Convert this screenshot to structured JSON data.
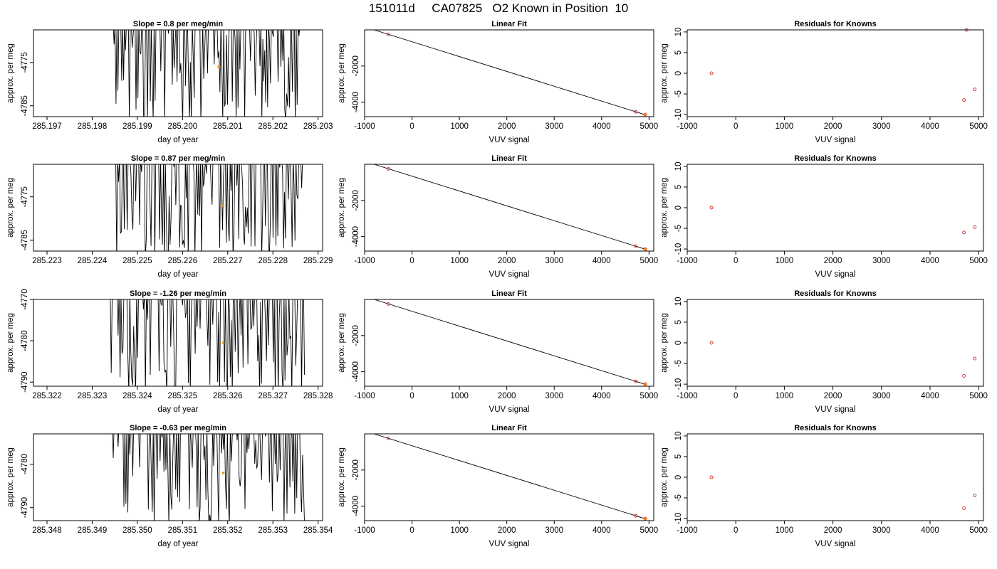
{
  "figure": {
    "title": "151011d     CA07825   O2 Known in Position  10"
  },
  "style": {
    "trace_color": "#000000",
    "current_point_color": "#ff8c00",
    "known_point_color": "#d62728",
    "fit_line_color": "#000000"
  },
  "chart_data": [
    {
      "type": "line",
      "title": "Slope =  0.8  per meg/min",
      "xlabel": "day of year",
      "ylabel": "approx. per meg",
      "xlim": [
        285.1967,
        285.2031
      ],
      "ylim": [
        -4787.5,
        -4767.5
      ],
      "xticks": [
        285.197,
        285.198,
        285.199,
        285.2,
        285.201,
        285.202,
        285.203
      ],
      "xtick_labels": [
        "285.197",
        "285.198",
        "285.199",
        "285.200",
        "285.201",
        "285.202",
        "285.203"
      ],
      "yticks": [
        -4785,
        -4775
      ],
      "trace": {
        "x_start": 285.1984,
        "x_end": 285.2026,
        "n_points": 200,
        "y_min": -4786.5,
        "y_max": -4768,
        "seed": 11
      },
      "highlight": {
        "x": 285.2008,
        "y": -4776
      }
    },
    {
      "type": "scatter",
      "title": "Linear Fit",
      "xlabel": "VUV signal",
      "ylabel": "approx. per meg",
      "xlim": [
        -1000,
        5100
      ],
      "ylim": [
        -4800,
        0
      ],
      "xticks": [
        -1000,
        0,
        1000,
        2000,
        3000,
        4000,
        5000
      ],
      "yticks": [
        -4000,
        -2000
      ],
      "points": [
        {
          "x": -500,
          "y": -250
        },
        {
          "x": 4720,
          "y": -4530
        },
        {
          "x": 4920,
          "y": -4690
        }
      ],
      "fit_line": {
        "x": [
          -800,
          4950
        ],
        "y": [
          0,
          -4720
        ]
      },
      "highlight": {
        "x": 4920,
        "y": -4690
      }
    },
    {
      "type": "scatter",
      "title": "Residuals for Knowns",
      "xlabel": "VUV signal",
      "ylabel": "approx. per meg",
      "xlim": [
        -1000,
        5100
      ],
      "ylim": [
        -10.5,
        10.5
      ],
      "xticks": [
        -1000,
        0,
        1000,
        2000,
        3000,
        4000,
        5000
      ],
      "yticks": [
        -10,
        -5,
        0,
        5,
        10
      ],
      "points": [
        {
          "x": -500,
          "y": 0
        },
        {
          "x": 4700,
          "y": -6.5
        },
        {
          "x": 4750,
          "y": 10.5
        },
        {
          "x": 4920,
          "y": -3.9
        }
      ]
    },
    {
      "type": "line",
      "title": "Slope =  0.87  per meg/min",
      "xlabel": "day of year",
      "ylabel": "approx. per meg",
      "xlim": [
        285.2227,
        285.2291
      ],
      "ylim": [
        -4787.5,
        -4767.5
      ],
      "xticks": [
        285.223,
        285.224,
        285.225,
        285.226,
        285.227,
        285.228,
        285.229
      ],
      "xtick_labels": [
        "285.223",
        "285.224",
        "285.225",
        "285.226",
        "285.227",
        "285.228",
        "285.229"
      ],
      "yticks": [
        -4785,
        -4775
      ],
      "trace": {
        "x_start": 285.2245,
        "x_end": 285.2287,
        "n_points": 200,
        "y_min": -4787.5,
        "y_max": -4768,
        "seed": 23
      },
      "highlight": {
        "x": 285.2269,
        "y": -4777
      }
    },
    {
      "type": "scatter",
      "title": "Linear Fit",
      "xlabel": "VUV signal",
      "ylabel": "approx. per meg",
      "xlim": [
        -1000,
        5100
      ],
      "ylim": [
        -4800,
        0
      ],
      "xticks": [
        -1000,
        0,
        1000,
        2000,
        3000,
        4000,
        5000
      ],
      "yticks": [
        -4000,
        -2000
      ],
      "points": [
        {
          "x": -500,
          "y": -250
        },
        {
          "x": 4720,
          "y": -4530
        },
        {
          "x": 4920,
          "y": -4690
        }
      ],
      "fit_line": {
        "x": [
          -800,
          4950
        ],
        "y": [
          0,
          -4720
        ]
      },
      "highlight": {
        "x": 4920,
        "y": -4690
      }
    },
    {
      "type": "scatter",
      "title": "Residuals for Knowns",
      "xlabel": "VUV signal",
      "ylabel": "approx. per meg",
      "xlim": [
        -1000,
        5100
      ],
      "ylim": [
        -10.5,
        10.5
      ],
      "xticks": [
        -1000,
        0,
        1000,
        2000,
        3000,
        4000,
        5000
      ],
      "yticks": [
        -10,
        -5,
        0,
        5,
        10
      ],
      "points": [
        {
          "x": -500,
          "y": 0
        },
        {
          "x": 4700,
          "y": -6
        },
        {
          "x": 4920,
          "y": -4.7
        }
      ]
    },
    {
      "type": "line",
      "title": "Slope =  -1.26  per meg/min",
      "xlabel": "day of year",
      "ylabel": "approx. per meg",
      "xlim": [
        285.3217,
        285.3281
      ],
      "ylim": [
        -4791,
        -4770
      ],
      "xticks": [
        285.322,
        285.323,
        285.324,
        285.325,
        285.326,
        285.327,
        285.328
      ],
      "xtick_labels": [
        "285.322",
        "285.323",
        "285.324",
        "285.325",
        "285.326",
        "285.327",
        "285.328"
      ],
      "yticks": [
        -4790,
        -4780,
        -4770
      ],
      "trace": {
        "x_start": 285.3234,
        "x_end": 285.3277,
        "n_points": 200,
        "y_min": -4791,
        "y_max": -4770,
        "seed": 37
      },
      "highlight": {
        "x": 285.3259,
        "y": -4780.5
      }
    },
    {
      "type": "scatter",
      "title": "Linear Fit",
      "xlabel": "VUV signal",
      "ylabel": "approx. per meg",
      "xlim": [
        -1000,
        5100
      ],
      "ylim": [
        -4800,
        0
      ],
      "xticks": [
        -1000,
        0,
        1000,
        2000,
        3000,
        4000,
        5000
      ],
      "yticks": [
        -4000,
        -2000
      ],
      "points": [
        {
          "x": -500,
          "y": -250
        },
        {
          "x": 4720,
          "y": -4530
        },
        {
          "x": 4920,
          "y": -4690
        }
      ],
      "fit_line": {
        "x": [
          -800,
          4950
        ],
        "y": [
          0,
          -4720
        ]
      },
      "highlight": {
        "x": 4920,
        "y": -4690
      }
    },
    {
      "type": "scatter",
      "title": "Residuals for Knowns",
      "xlabel": "VUV signal",
      "ylabel": "approx. per meg",
      "xlim": [
        -1000,
        5100
      ],
      "ylim": [
        -10.5,
        10.5
      ],
      "xticks": [
        -1000,
        0,
        1000,
        2000,
        3000,
        4000,
        5000
      ],
      "yticks": [
        -10,
        -5,
        0,
        5,
        10
      ],
      "points": [
        {
          "x": -500,
          "y": 0
        },
        {
          "x": 4700,
          "y": -8
        },
        {
          "x": 4920,
          "y": -3.8
        }
      ]
    },
    {
      "type": "line",
      "title": "Slope =  -0.63  per meg/min",
      "xlabel": "day of year",
      "ylabel": "approx. per meg",
      "xlim": [
        285.3477,
        285.3541
      ],
      "ylim": [
        -4793,
        -4773
      ],
      "xticks": [
        285.348,
        285.349,
        285.35,
        285.351,
        285.352,
        285.353,
        285.354
      ],
      "xtick_labels": [
        "285.348",
        "285.349",
        "285.350",
        "285.351",
        "285.352",
        "285.353",
        "285.354"
      ],
      "yticks": [
        -4790,
        -4780
      ],
      "trace": {
        "x_start": 285.3494,
        "x_end": 285.3537,
        "n_points": 200,
        "y_min": -4792,
        "y_max": -4773,
        "seed": 53
      },
      "highlight": {
        "x": 285.3519,
        "y": -4782
      }
    },
    {
      "type": "scatter",
      "title": "Linear Fit",
      "xlabel": "VUV signal",
      "ylabel": "approx. per meg",
      "xlim": [
        -1000,
        5100
      ],
      "ylim": [
        -4800,
        0
      ],
      "xticks": [
        -1000,
        0,
        1000,
        2000,
        3000,
        4000,
        5000
      ],
      "yticks": [
        -4000,
        -2000
      ],
      "points": [
        {
          "x": -500,
          "y": -250
        },
        {
          "x": 4720,
          "y": -4530
        },
        {
          "x": 4920,
          "y": -4690
        }
      ],
      "fit_line": {
        "x": [
          -800,
          4950
        ],
        "y": [
          0,
          -4720
        ]
      },
      "highlight": {
        "x": 4920,
        "y": -4690
      }
    },
    {
      "type": "scatter",
      "title": "Residuals for Knowns",
      "xlabel": "VUV signal",
      "ylabel": "approx. per meg",
      "xlim": [
        -1000,
        5100
      ],
      "ylim": [
        -10.5,
        10.5
      ],
      "xticks": [
        -1000,
        0,
        1000,
        2000,
        3000,
        4000,
        5000
      ],
      "yticks": [
        -10,
        -5,
        0,
        5,
        10
      ],
      "points": [
        {
          "x": -500,
          "y": 0
        },
        {
          "x": 4700,
          "y": -7.5
        },
        {
          "x": 4920,
          "y": -4.4
        }
      ]
    }
  ]
}
